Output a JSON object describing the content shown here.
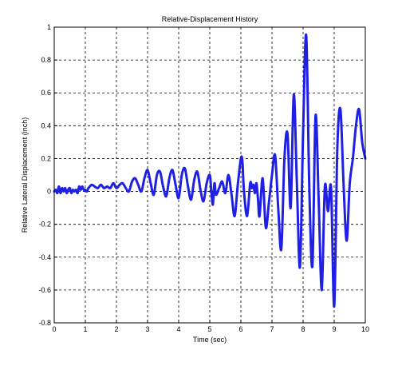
{
  "chart_data": {
    "type": "line",
    "title": "Relative-Displacement History",
    "xlabel": "Time (sec)",
    "ylabel": "Relative Lateral Displacement (inch)",
    "xlim": [
      0,
      10
    ],
    "ylim": [
      -0.8,
      1
    ],
    "xticks": [
      0,
      1,
      2,
      3,
      4,
      5,
      6,
      7,
      8,
      9,
      10
    ],
    "yticks": [
      -0.8,
      -0.6,
      -0.4,
      -0.2,
      0,
      0.2,
      0.4,
      0.6,
      0.8,
      1
    ],
    "xtick_labels": [
      "0",
      "1",
      "2",
      "3",
      "4",
      "5",
      "6",
      "7",
      "8",
      "9",
      "10"
    ],
    "ytick_labels": [
      "-0.8",
      "-0.6",
      "-0.4",
      "-0.2",
      "0",
      "0.2",
      "0.4",
      "0.6",
      "0.8",
      "1"
    ],
    "grid": true,
    "grid_style": "dashed",
    "line_color": "#1f1fe6",
    "series": [
      {
        "x": [
          0,
          0.05,
          0.1,
          0.15,
          0.2,
          0.25,
          0.3,
          0.35,
          0.4,
          0.45,
          0.5,
          0.55,
          0.6,
          0.65,
          0.7,
          0.75,
          0.8,
          0.85,
          0.9,
          0.95,
          1.0,
          1.05,
          1.1,
          1.2,
          1.3,
          1.4,
          1.5,
          1.6,
          1.7,
          1.8,
          1.9,
          2.0,
          2.1,
          2.2,
          2.3,
          2.4,
          2.5,
          2.6,
          2.7,
          2.8,
          2.9,
          3.0,
          3.1,
          3.2,
          3.3,
          3.4,
          3.5,
          3.6,
          3.7,
          3.8,
          3.9,
          4.0,
          4.1,
          4.2,
          4.3,
          4.4,
          4.5,
          4.6,
          4.7,
          4.8,
          4.9,
          5.0,
          5.05,
          5.1,
          5.15,
          5.2,
          5.3,
          5.4,
          5.5,
          5.6,
          5.7,
          5.8,
          5.9,
          6.0,
          6.05,
          6.1,
          6.2,
          6.3,
          6.35,
          6.4,
          6.45,
          6.5,
          6.55,
          6.6,
          6.7,
          6.8,
          6.9,
          7.0,
          7.1,
          7.2,
          7.3,
          7.4,
          7.5,
          7.6,
          7.7,
          7.8,
          7.9,
          8.0,
          8.1,
          8.2,
          8.3,
          8.4,
          8.5,
          8.6,
          8.7,
          8.8,
          8.9,
          9.0,
          9.1,
          9.2,
          9.3,
          9.4,
          9.5,
          9.6,
          9.7,
          9.8,
          9.9,
          10.0
        ],
        "values": [
          0,
          0.01,
          -0.01,
          0.03,
          -0.01,
          0.02,
          0,
          0.02,
          -0.01,
          0.01,
          0.02,
          -0.01,
          0.01,
          0,
          0.01,
          -0.01,
          0.03,
          0.01,
          0.03,
          0.01,
          0.01,
          0,
          0.02,
          0.04,
          0.03,
          0.02,
          0.04,
          0.02,
          0.03,
          0.02,
          0.05,
          0.02,
          0.04,
          0.05,
          0.02,
          0.0,
          0.06,
          0.08,
          0.04,
          0,
          0.08,
          0.13,
          0.05,
          -0.02,
          0.1,
          0.12,
          0.03,
          -0.03,
          0.08,
          0.13,
          0.04,
          -0.04,
          0.1,
          0.14,
          0.03,
          -0.05,
          0.07,
          0.12,
          0.01,
          -0.06,
          0.05,
          0.1,
          0,
          -0.08,
          0.05,
          -0.02,
          0.02,
          0.06,
          -0.01,
          0.1,
          -0.02,
          -0.15,
          0.04,
          0.2,
          0.18,
          0.0,
          -0.15,
          0.05,
          0.02,
          0.04,
          -0.01,
          0.05,
          -0.05,
          -0.15,
          0.08,
          -0.22,
          -0.07,
          0.1,
          0.22,
          -0.1,
          -0.35,
          0.2,
          0.35,
          -0.1,
          0.59,
          0.05,
          -0.46,
          0.36,
          0.95,
          0.02,
          -0.45,
          0.46,
          -0.05,
          -0.6,
          0.03,
          -0.12,
          0.02,
          -0.7,
          0.26,
          0.5,
          0.05,
          -0.3,
          0.05,
          0.2,
          0.4,
          0.5,
          0.3,
          0.2
        ]
      }
    ]
  }
}
